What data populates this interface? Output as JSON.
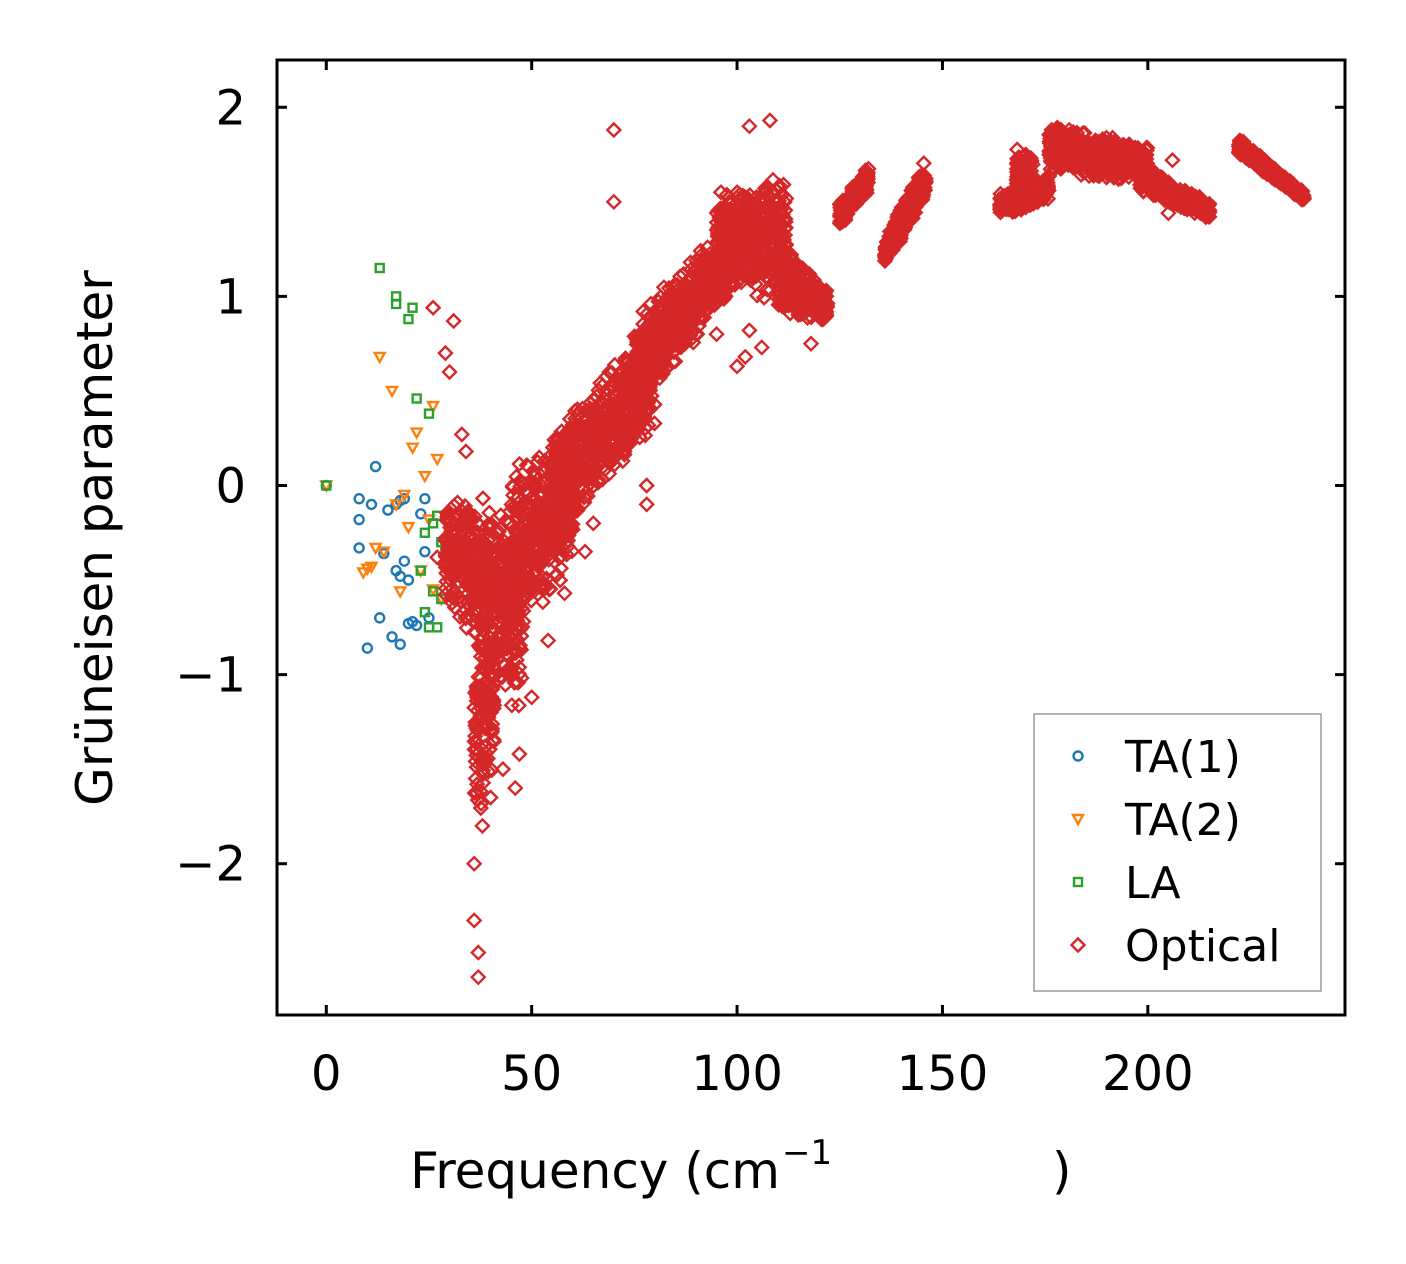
{
  "chart_data": {
    "type": "scatter",
    "xlabel": "Frequency (cm",
    "xlabel_sup": "−1",
    "xlabel_close": ")",
    "ylabel": "Grüneisen parameter",
    "xlim": [
      -12,
      248
    ],
    "ylim": [
      -2.8,
      2.25
    ],
    "x_ticks": [
      0,
      50,
      100,
      150,
      200
    ],
    "x_tick_labels": [
      "0",
      "50",
      "100",
      "150",
      "200"
    ],
    "y_ticks": [
      -2,
      -1,
      0,
      1,
      2
    ],
    "y_tick_labels": [
      "−2",
      "−1",
      "0",
      "1",
      "2"
    ],
    "legend_position": "lower-right",
    "series": [
      {
        "name": "TA(1)",
        "marker": "circle",
        "color": "#1f77b4",
        "x": [
          0,
          8,
          8,
          8,
          10,
          11,
          12,
          13,
          14,
          15,
          16,
          17,
          17,
          18,
          18,
          18,
          19,
          19,
          20,
          20,
          21,
          22,
          23,
          24,
          24,
          25
        ],
        "y": [
          0.0,
          -0.07,
          -0.18,
          -0.33,
          -0.86,
          -0.1,
          0.1,
          -0.7,
          -0.36,
          -0.13,
          -0.8,
          -0.45,
          -0.1,
          -0.48,
          -0.84,
          -0.08,
          -0.4,
          -0.07,
          -0.73,
          -0.5,
          -0.72,
          -0.74,
          -0.15,
          -0.35,
          -0.07,
          -0.7
        ]
      },
      {
        "name": "TA(2)",
        "marker": "triangle-down",
        "color": "#ff7f0e",
        "x": [
          0,
          9,
          10,
          11,
          12,
          13,
          14,
          16,
          17,
          18,
          19,
          20,
          21,
          22,
          23,
          24,
          25,
          26,
          26,
          27,
          28
        ],
        "y": [
          0.0,
          -0.46,
          -0.44,
          -0.43,
          -0.33,
          0.68,
          -0.35,
          0.5,
          -0.1,
          -0.56,
          -0.05,
          -0.22,
          0.2,
          0.28,
          -0.45,
          0.05,
          -0.18,
          0.42,
          -0.55,
          0.14,
          -0.6
        ]
      },
      {
        "name": "LA",
        "marker": "square",
        "color": "#2ca02c",
        "x": [
          0,
          13,
          17,
          17,
          20,
          21,
          22,
          23,
          24,
          24,
          25,
          25,
          26,
          26,
          27,
          27,
          28,
          28,
          29
        ],
        "y": [
          0.0,
          1.15,
          1.0,
          0.96,
          0.88,
          0.94,
          0.46,
          -0.45,
          -0.67,
          -0.25,
          0.38,
          -0.75,
          -0.2,
          -0.56,
          -0.16,
          -0.75,
          -0.6,
          -0.3,
          -0.32
        ]
      },
      {
        "name": "Optical",
        "marker": "diamond",
        "color": "#d62728",
        "outliers_x": [
          26,
          27,
          29,
          30,
          31,
          33,
          34,
          36,
          36,
          37,
          37,
          38,
          40,
          43,
          46,
          47,
          50,
          54,
          58,
          63,
          65,
          70,
          70,
          78,
          78,
          90,
          95,
          100,
          102,
          103,
          103,
          106,
          108,
          118,
          205,
          206
        ],
        "outliers_y": [
          0.94,
          -0.38,
          0.7,
          0.6,
          0.87,
          0.27,
          0.18,
          -2.0,
          -2.3,
          -2.47,
          -2.6,
          -1.8,
          -1.65,
          -1.5,
          -1.6,
          -1.42,
          -1.12,
          -0.82,
          -0.57,
          -0.35,
          -0.2,
          1.88,
          1.5,
          0.0,
          -0.1,
          0.8,
          0.8,
          0.63,
          0.68,
          0.82,
          1.9,
          0.73,
          1.93,
          0.75,
          1.44,
          1.72
        ],
        "bands": [
          {
            "x": [
              29,
              48
            ],
            "y_top": [
              0.0,
              -0.1
            ],
            "y_bottom": [
              -0.6,
              -1.3
            ]
          },
          {
            "x": [
              36,
              41
            ],
            "y_top": [
              -0.6,
              -0.6
            ],
            "y_bottom": [
              -1.9,
              -1.5
            ]
          },
          {
            "x": [
              45,
              60
            ],
            "y_top": [
              0.1,
              0.35
            ],
            "y_bottom": [
              -0.85,
              -0.45
            ]
          },
          {
            "x": [
              55,
              80
            ],
            "y_top": [
              0.3,
              0.9
            ],
            "y_bottom": [
              -0.35,
              0.3
            ]
          },
          {
            "x": [
              75,
              100
            ],
            "y_top": [
              0.9,
              1.45
            ],
            "y_bottom": [
              0.35,
              1.05
            ]
          },
          {
            "x": [
              95,
              112
            ],
            "y_top": [
              1.55,
              1.65
            ],
            "y_bottom": [
              1.05,
              0.95
            ]
          },
          {
            "x": [
              110,
              122
            ],
            "y_top": [
              1.3,
              1.05
            ],
            "y_bottom": [
              0.9,
              0.85
            ]
          },
          {
            "x": [
              125,
              132
            ],
            "y_top": [
              1.5,
              1.7
            ],
            "y_bottom": [
              1.35,
              1.55
            ]
          },
          {
            "x": [
              136,
              146
            ],
            "y_top": [
              1.3,
              1.75
            ],
            "y_bottom": [
              1.15,
              1.5
            ]
          },
          {
            "x": [
              164,
              176
            ],
            "y_top": [
              1.55,
              1.65
            ],
            "y_bottom": [
              1.42,
              1.5
            ]
          },
          {
            "x": [
              168,
              172
            ],
            "y_top": [
              1.8,
              1.78
            ],
            "y_bottom": [
              1.5,
              1.5
            ]
          },
          {
            "x": [
              176,
              200
            ],
            "y_top": [
              1.92,
              1.8
            ],
            "y_bottom": [
              1.65,
              1.6
            ]
          },
          {
            "x": [
              198,
              215
            ],
            "y_top": [
              1.7,
              1.5
            ],
            "y_bottom": [
              1.55,
              1.4
            ]
          },
          {
            "x": [
              222,
              238
            ],
            "y_top": [
              1.85,
              1.55
            ],
            "y_bottom": [
              1.75,
              1.5
            ]
          }
        ]
      }
    ]
  }
}
